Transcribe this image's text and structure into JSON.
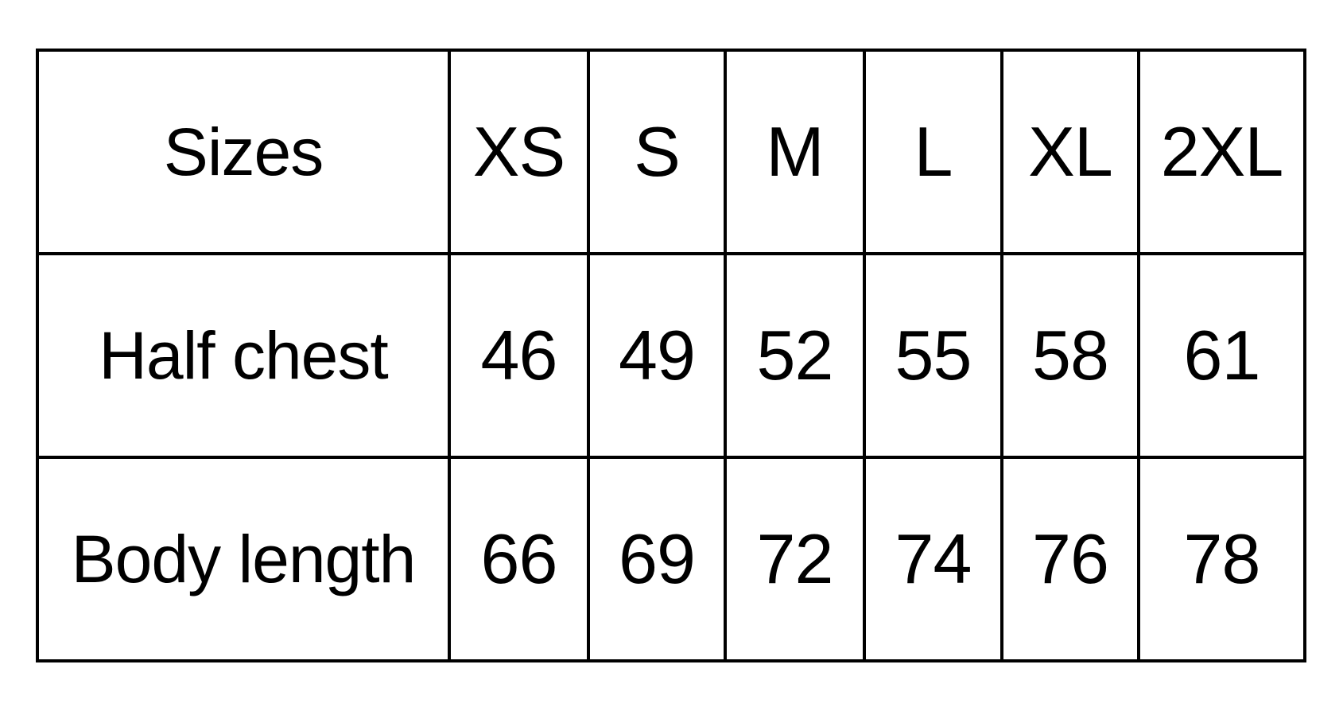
{
  "table": {
    "header": [
      "Sizes",
      "XS",
      "S",
      "M",
      "L",
      "XL",
      "2XL"
    ],
    "rows": [
      [
        "Half chest",
        "46",
        "49",
        "52",
        "55",
        "58",
        "61"
      ],
      [
        "Body length",
        "66",
        "69",
        "72",
        "74",
        "76",
        "78"
      ]
    ]
  }
}
